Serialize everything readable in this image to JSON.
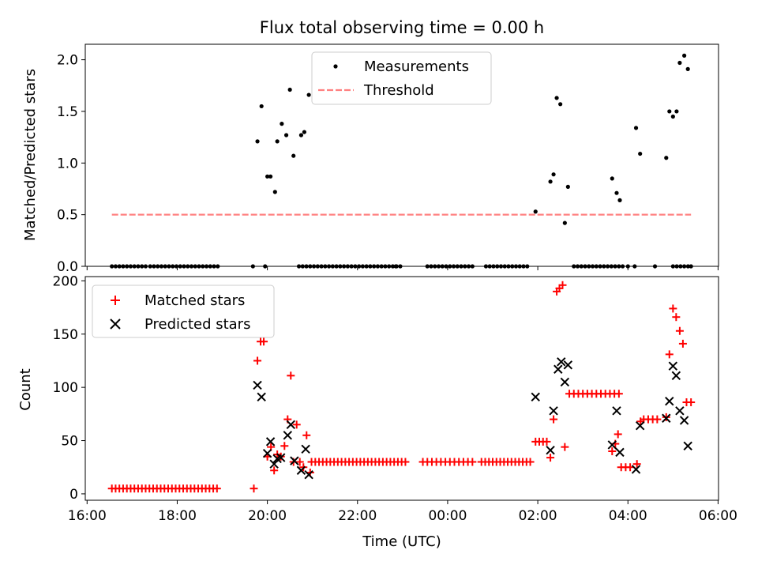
{
  "chart_data": {
    "type": "scatter",
    "title": "Flux total observing time = 0.00 h",
    "xlabel": "Time (UTC)",
    "x_ticks": [
      {
        "h": 16,
        "label": "16:00"
      },
      {
        "h": 18,
        "label": "18:00"
      },
      {
        "h": 20,
        "label": "20:00"
      },
      {
        "h": 22,
        "label": "22:00"
      },
      {
        "h": 24,
        "label": "00:00"
      },
      {
        "h": 26,
        "label": "02:00"
      },
      {
        "h": 28,
        "label": "04:00"
      },
      {
        "h": 30,
        "label": "06:00"
      }
    ],
    "xlim": [
      15.96,
      30.01
    ],
    "panels": [
      {
        "ylabel": "Matched/Predicted stars",
        "ylim": [
          0,
          2.15
        ],
        "y_ticks": [
          {
            "v": 0,
            "label": "0.0"
          },
          {
            "v": 0.5,
            "label": "0.5"
          },
          {
            "v": 1.0,
            "label": "1.0"
          },
          {
            "v": 1.5,
            "label": "1.5"
          },
          {
            "v": 2.0,
            "label": "2.0"
          }
        ],
        "legend": {
          "position": "upper-center",
          "items": [
            "Measurements",
            "Threshold"
          ]
        },
        "threshold": {
          "name": "Threshold",
          "value": 0.5,
          "x_range": [
            16.55,
            29.4
          ],
          "color": "#ff8080"
        },
        "measurements": {
          "name": "Measurements",
          "color": "#000000",
          "zero_runs": [
            [
              16.55,
              17.3,
              0.0833
            ],
            [
              17.4,
              18.95,
              0.0833
            ],
            [
              20.7,
              23.0,
              0.0833
            ],
            [
              23.55,
              24.55,
              0.0833
            ],
            [
              24.85,
              25.8,
              0.0833
            ],
            [
              26.8,
              27.9,
              0.0833
            ],
            [
              29.0,
              29.4,
              0.0833
            ]
          ],
          "points": [
            [
              19.68,
              0
            ],
            [
              19.95,
              0
            ],
            [
              22.85,
              0
            ],
            [
              28.0,
              0
            ],
            [
              28.15,
              0
            ],
            [
              28.6,
              0
            ],
            [
              19.78,
              1.21
            ],
            [
              19.87,
              1.55
            ],
            [
              20.0,
              0.87
            ],
            [
              20.07,
              0.87
            ],
            [
              20.17,
              0.72
            ],
            [
              20.22,
              1.21
            ],
            [
              20.32,
              1.38
            ],
            [
              20.42,
              1.27
            ],
            [
              20.5,
              1.71
            ],
            [
              20.58,
              1.07
            ],
            [
              20.75,
              1.27
            ],
            [
              20.82,
              1.3
            ],
            [
              20.92,
              1.66
            ],
            [
              25.95,
              0.53
            ],
            [
              26.28,
              0.82
            ],
            [
              26.35,
              0.89
            ],
            [
              26.42,
              1.63
            ],
            [
              26.5,
              1.57
            ],
            [
              26.6,
              0.42
            ],
            [
              26.67,
              0.77
            ],
            [
              27.65,
              0.85
            ],
            [
              27.75,
              0.71
            ],
            [
              27.82,
              0.64
            ],
            [
              28.18,
              1.34
            ],
            [
              28.27,
              1.09
            ],
            [
              28.85,
              1.05
            ],
            [
              28.92,
              1.5
            ],
            [
              29.0,
              1.45
            ],
            [
              29.08,
              1.5
            ],
            [
              29.15,
              1.97
            ],
            [
              29.25,
              2.04
            ],
            [
              29.33,
              1.91
            ],
            [
              29.4,
              0
            ]
          ]
        }
      },
      {
        "ylabel": "Count",
        "ylim": [
          -6,
          204
        ],
        "y_ticks": [
          {
            "v": 0,
            "label": "0"
          },
          {
            "v": 50,
            "label": "50"
          },
          {
            "v": 100,
            "label": "100"
          },
          {
            "v": 150,
            "label": "150"
          },
          {
            "v": 200,
            "label": "200"
          }
        ],
        "legend": {
          "position": "upper-left",
          "items": [
            "Matched stars",
            "Predicted stars"
          ]
        },
        "matched": {
          "name": "Matched stars",
          "color": "#ff0000",
          "runs": [
            [
              16.55,
              18.95,
              0.0833,
              5
            ],
            [
              20.98,
              23.1,
              0.0833,
              30
            ],
            [
              23.45,
              24.6,
              0.1,
              30
            ],
            [
              24.75,
              25.85,
              0.0833,
              30
            ],
            [
              25.95,
              26.2,
              0.0833,
              49
            ],
            [
              26.9,
              27.8,
              0.1,
              94
            ],
            [
              28.35,
              28.7,
              0.1,
              70
            ],
            [
              27.85,
              28.05,
              0.1,
              25
            ],
            [
              29.3,
              29.45,
              0.1,
              86
            ]
          ],
          "points": [
            [
              19.7,
              5
            ],
            [
              19.78,
              125
            ],
            [
              19.85,
              143
            ],
            [
              19.92,
              143
            ],
            [
              20.0,
              35
            ],
            [
              20.08,
              44
            ],
            [
              20.15,
              22
            ],
            [
              20.22,
              37
            ],
            [
              20.3,
              35
            ],
            [
              20.38,
              45
            ],
            [
              20.45,
              70
            ],
            [
              20.52,
              111
            ],
            [
              20.58,
              30
            ],
            [
              20.65,
              65
            ],
            [
              20.72,
              30
            ],
            [
              20.8,
              25
            ],
            [
              20.87,
              55
            ],
            [
              20.95,
              20
            ],
            [
              26.28,
              34
            ],
            [
              26.35,
              70
            ],
            [
              26.42,
              190
            ],
            [
              26.48,
              193
            ],
            [
              26.55,
              196
            ],
            [
              26.6,
              44
            ],
            [
              26.7,
              94
            ],
            [
              26.8,
              94
            ],
            [
              27.65,
              40
            ],
            [
              27.72,
              47
            ],
            [
              27.78,
              56
            ],
            [
              28.2,
              28
            ],
            [
              28.28,
              68
            ],
            [
              28.85,
              72
            ],
            [
              28.92,
              131
            ],
            [
              29.0,
              174
            ],
            [
              29.07,
              166
            ],
            [
              29.15,
              153
            ],
            [
              29.22,
              141
            ]
          ]
        },
        "predicted": {
          "name": "Predicted stars",
          "color": "#000000",
          "points": [
            [
              19.78,
              102
            ],
            [
              19.87,
              91
            ],
            [
              20.0,
              38
            ],
            [
              20.07,
              49
            ],
            [
              20.15,
              28
            ],
            [
              20.22,
              33
            ],
            [
              20.3,
              34
            ],
            [
              20.45,
              55
            ],
            [
              20.52,
              65
            ],
            [
              20.6,
              31
            ],
            [
              20.75,
              22
            ],
            [
              20.85,
              42
            ],
            [
              20.92,
              18
            ],
            [
              25.95,
              91
            ],
            [
              26.28,
              41
            ],
            [
              26.35,
              78
            ],
            [
              26.45,
              117
            ],
            [
              26.52,
              124
            ],
            [
              26.6,
              105
            ],
            [
              26.67,
              121
            ],
            [
              27.65,
              46
            ],
            [
              27.75,
              78
            ],
            [
              27.82,
              39
            ],
            [
              28.18,
              23
            ],
            [
              28.27,
              64
            ],
            [
              28.85,
              71
            ],
            [
              28.92,
              87
            ],
            [
              29.0,
              120
            ],
            [
              29.07,
              111
            ],
            [
              29.15,
              78
            ],
            [
              29.25,
              69
            ],
            [
              29.33,
              45
            ]
          ]
        }
      }
    ]
  }
}
